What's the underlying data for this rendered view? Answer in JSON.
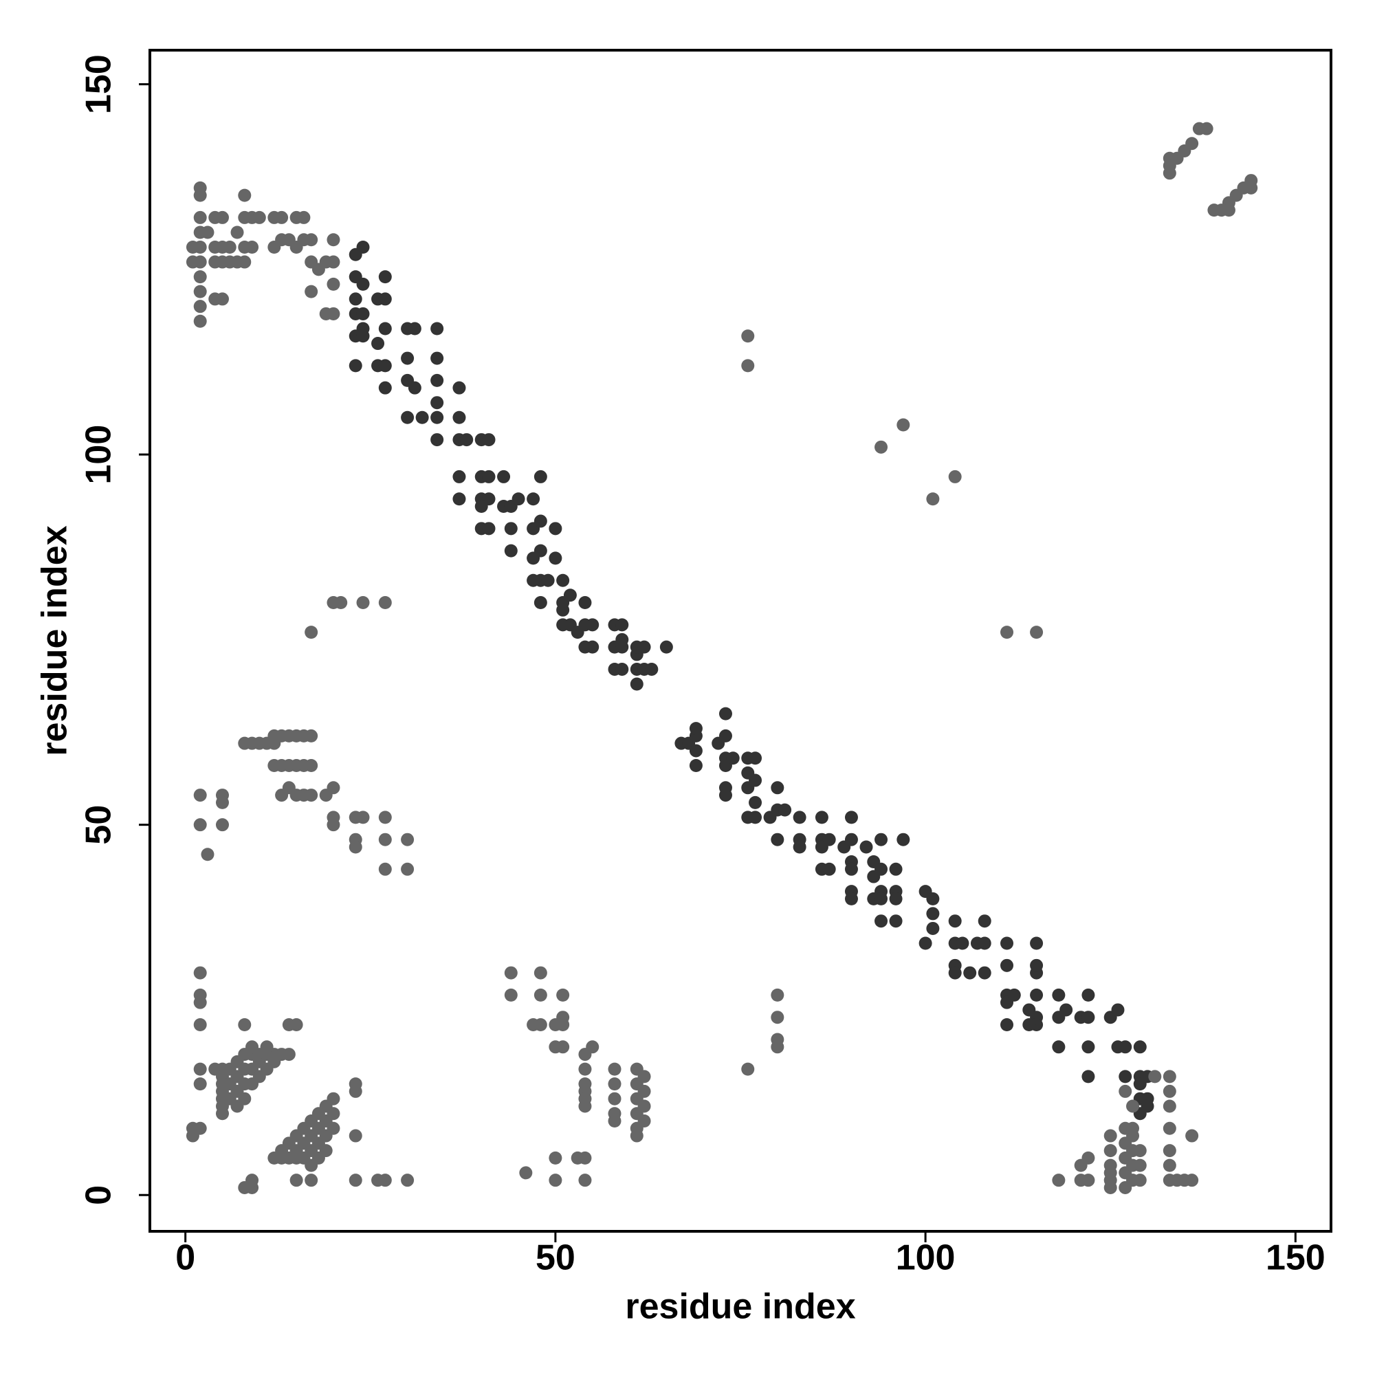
{
  "chart_data": {
    "type": "scatter",
    "x_label": "residue index",
    "y_label": "residue index",
    "xlim": [
      -4.8,
      154.8
    ],
    "ylim": [
      -4.9,
      154.6
    ],
    "xticks": [
      0,
      50,
      100,
      150
    ],
    "yticks": [
      0,
      50,
      100,
      150
    ],
    "grid": false,
    "series": [
      {
        "color": "#333333",
        "x": [
          23,
          24,
          23,
          24,
          23,
          23,
          24,
          26,
          27,
          27,
          24,
          23,
          24,
          26,
          27,
          26,
          27,
          27,
          23,
          30,
          31,
          34,
          30,
          30,
          31,
          34,
          34,
          34,
          30,
          32,
          34,
          37,
          37,
          34,
          37,
          38,
          40,
          41,
          37,
          40,
          41,
          43,
          37,
          40,
          41,
          40,
          43,
          44,
          45,
          47,
          48,
          40,
          41,
          44,
          47,
          48,
          50,
          44,
          47,
          48,
          48,
          49,
          50,
          47,
          51,
          48,
          51,
          52,
          54,
          51,
          51,
          52,
          54,
          55,
          53,
          58,
          59,
          54,
          55,
          58,
          59,
          59,
          58,
          59,
          61,
          61,
          62,
          65,
          61,
          62,
          63,
          61,
          67,
          68,
          69,
          69,
          69,
          69,
          72,
          73,
          73,
          73,
          73,
          74,
          73,
          73,
          76,
          77,
          76,
          76,
          77,
          77,
          76,
          77,
          79,
          80,
          80,
          81,
          80,
          83,
          83,
          83,
          86,
          86,
          86,
          87,
          86,
          87,
          89,
          90,
          90,
          90,
          90,
          90,
          90,
          92,
          93,
          93,
          93,
          94,
          94,
          94,
          94,
          96,
          96,
          96,
          96,
          97,
          94,
          100,
          101,
          101,
          101,
          100,
          104,
          104,
          104,
          105,
          104,
          106,
          107,
          108,
          108,
          108,
          111,
          111,
          111,
          111,
          112,
          111,
          114,
          115,
          115,
          115,
          114,
          115,
          115,
          115,
          118,
          118,
          119,
          118,
          121,
          122,
          122,
          122,
          122,
          125,
          126,
          126,
          127,
          129,
          127,
          129,
          129,
          130,
          129,
          130,
          129,
          130
        ],
        "y": [
          127,
          128,
          124,
          123,
          121,
          119,
          119,
          121,
          121,
          124,
          117,
          116,
          116,
          115,
          117,
          112,
          112,
          109,
          112,
          117,
          117,
          117,
          113,
          110,
          109,
          113,
          110,
          107,
          105,
          105,
          105,
          109,
          105,
          102,
          102,
          102,
          102,
          102,
          97,
          97,
          97,
          97,
          94,
          94,
          94,
          93,
          93,
          93,
          94,
          94,
          97,
          90,
          90,
          90,
          90,
          91,
          90,
          87,
          86,
          87,
          83,
          83,
          86,
          83,
          83,
          80,
          80,
          81,
          80,
          79,
          77,
          77,
          77,
          77,
          76,
          77,
          77,
          74,
          74,
          74,
          74,
          75,
          71,
          71,
          73,
          74,
          74,
          74,
          71,
          71,
          71,
          69,
          61,
          61,
          62,
          63,
          58,
          60,
          61,
          62,
          65,
          59,
          58,
          59,
          55,
          54,
          59,
          59,
          57,
          55,
          56,
          53,
          51,
          51,
          51,
          52,
          55,
          52,
          48,
          48,
          47,
          51,
          51,
          48,
          47,
          48,
          44,
          44,
          47,
          48,
          51,
          45,
          44,
          41,
          40,
          47,
          45,
          43,
          40,
          44,
          41,
          40,
          37,
          44,
          41,
          40,
          37,
          48,
          48,
          41,
          40,
          38,
          36,
          34,
          37,
          34,
          31,
          34,
          30,
          30,
          34,
          37,
          34,
          30,
          34,
          31,
          27,
          26,
          27,
          23,
          25,
          27,
          24,
          23,
          23,
          30,
          31,
          34,
          27,
          24,
          25,
          20,
          24,
          27,
          24,
          20,
          16,
          24,
          25,
          20,
          20,
          20,
          16,
          16,
          15,
          16,
          13,
          13,
          11,
          12
        ]
      },
      {
        "color": "#666666",
        "x": [
          2,
          2,
          2,
          2,
          2,
          2,
          2,
          2,
          2,
          2,
          1,
          1,
          3,
          4,
          5,
          4,
          5,
          6,
          4,
          5,
          6,
          7,
          8,
          4,
          5,
          7,
          8,
          8,
          9,
          10,
          8,
          9,
          12,
          13,
          15,
          16,
          12,
          13,
          14,
          15,
          16,
          17,
          17,
          18,
          17,
          20,
          20,
          19,
          20,
          19,
          20,
          131,
          133,
          133,
          133,
          133,
          133,
          133,
          133,
          134,
          135,
          136,
          136,
          118,
          121,
          121,
          122,
          122,
          125,
          125,
          125,
          125,
          125,
          125,
          127,
          127,
          127,
          127,
          127,
          128,
          128,
          128,
          128,
          128,
          129,
          129,
          129,
          128,
          127,
          133,
          133,
          134,
          135,
          136,
          137,
          138,
          133,
          139,
          140,
          141,
          142,
          143,
          144,
          144,
          141,
          76,
          76,
          94,
          97,
          101,
          104,
          111,
          115,
          20,
          21,
          24,
          27,
          17,
          76,
          80,
          80,
          80,
          80,
          8,
          9,
          10,
          11,
          12,
          12,
          13,
          14,
          15,
          16,
          17,
          12,
          13,
          14,
          15,
          16,
          17,
          13,
          14,
          15,
          16,
          17,
          19,
          20,
          20,
          20,
          23,
          24,
          23,
          23,
          27,
          27,
          27,
          30,
          30,
          2,
          2,
          3,
          5,
          5,
          5,
          2,
          2,
          2,
          2,
          8,
          14,
          15,
          1,
          2,
          1,
          2,
          2,
          4,
          5,
          5,
          5,
          5,
          5,
          5,
          5,
          6,
          6,
          6,
          7,
          7,
          7,
          7,
          8,
          8,
          8,
          8,
          9,
          9,
          9,
          10,
          10,
          10,
          11,
          11,
          12,
          12,
          13,
          14,
          11,
          9,
          12,
          13,
          13,
          14,
          14,
          15,
          15,
          15,
          16,
          16,
          16,
          17,
          17,
          17,
          17,
          18,
          18,
          18,
          18,
          19,
          19,
          19,
          19,
          20,
          20,
          20,
          23,
          23,
          23,
          8,
          9,
          9,
          15,
          17,
          23,
          26,
          27,
          30,
          46,
          50,
          50,
          53,
          54,
          54,
          44,
          44,
          48,
          48,
          47,
          48,
          50,
          51,
          51,
          51,
          50,
          51,
          54,
          55,
          54,
          54,
          54,
          54,
          54,
          58,
          58,
          58,
          58,
          58,
          61,
          61,
          61,
          61,
          62,
          62,
          62,
          62,
          61,
          61
        ],
        "y": [
          136,
          135,
          132,
          130,
          128,
          126,
          124,
          122,
          120,
          118,
          128,
          126,
          130,
          132,
          132,
          128,
          128,
          128,
          126,
          126,
          126,
          126,
          126,
          121,
          121,
          130,
          135,
          132,
          132,
          132,
          128,
          128,
          132,
          132,
          132,
          132,
          128,
          129,
          129,
          128,
          129,
          129,
          126,
          125,
          122,
          129,
          126,
          126,
          123,
          119,
          119,
          16,
          16,
          14,
          12,
          9,
          6,
          4,
          2,
          2,
          2,
          2,
          8,
          2,
          2,
          4,
          2,
          5,
          1,
          2,
          3,
          4,
          6,
          8,
          1,
          3,
          5,
          7,
          9,
          2,
          4,
          6,
          8,
          9,
          4,
          6,
          2,
          12,
          14,
          140,
          139,
          140,
          141,
          142,
          144,
          144,
          138,
          133,
          133,
          134,
          135,
          136,
          137,
          136,
          133,
          116,
          112,
          101,
          104,
          94,
          97,
          76,
          76,
          80,
          80,
          80,
          80,
          76,
          17,
          20,
          21,
          24,
          27,
          61,
          61,
          61,
          61,
          61,
          62,
          62,
          62,
          62,
          62,
          62,
          58,
          58,
          58,
          58,
          58,
          58,
          54,
          55,
          54,
          54,
          54,
          54,
          55,
          51,
          50,
          51,
          51,
          48,
          47,
          51,
          48,
          44,
          48,
          44,
          54,
          50,
          46,
          54,
          53,
          50,
          30,
          27,
          26,
          23,
          23,
          23,
          23,
          9,
          9,
          8,
          17,
          15,
          17,
          17,
          16,
          15,
          14,
          13,
          12,
          11,
          17,
          15,
          13,
          18,
          16,
          14,
          12,
          19,
          17,
          15,
          13,
          19,
          17,
          15,
          19,
          18,
          16,
          19,
          17,
          19,
          18,
          19,
          19,
          20,
          20,
          5,
          6,
          5,
          7,
          5,
          8,
          6,
          5,
          9,
          7,
          5,
          10,
          8,
          6,
          4,
          11,
          9,
          7,
          5,
          12,
          10,
          8,
          6,
          13,
          11,
          9,
          15,
          14,
          8,
          1,
          1,
          2,
          2,
          2,
          2,
          2,
          2,
          2,
          3,
          2,
          5,
          5,
          5,
          2,
          30,
          27,
          30,
          27,
          23,
          23,
          23,
          24,
          23,
          27,
          20,
          20,
          19,
          20,
          17,
          15,
          14,
          13,
          12,
          17,
          15,
          13,
          11,
          10,
          17,
          15,
          13,
          11,
          16,
          14,
          12,
          10,
          9,
          8
        ]
      }
    ]
  }
}
